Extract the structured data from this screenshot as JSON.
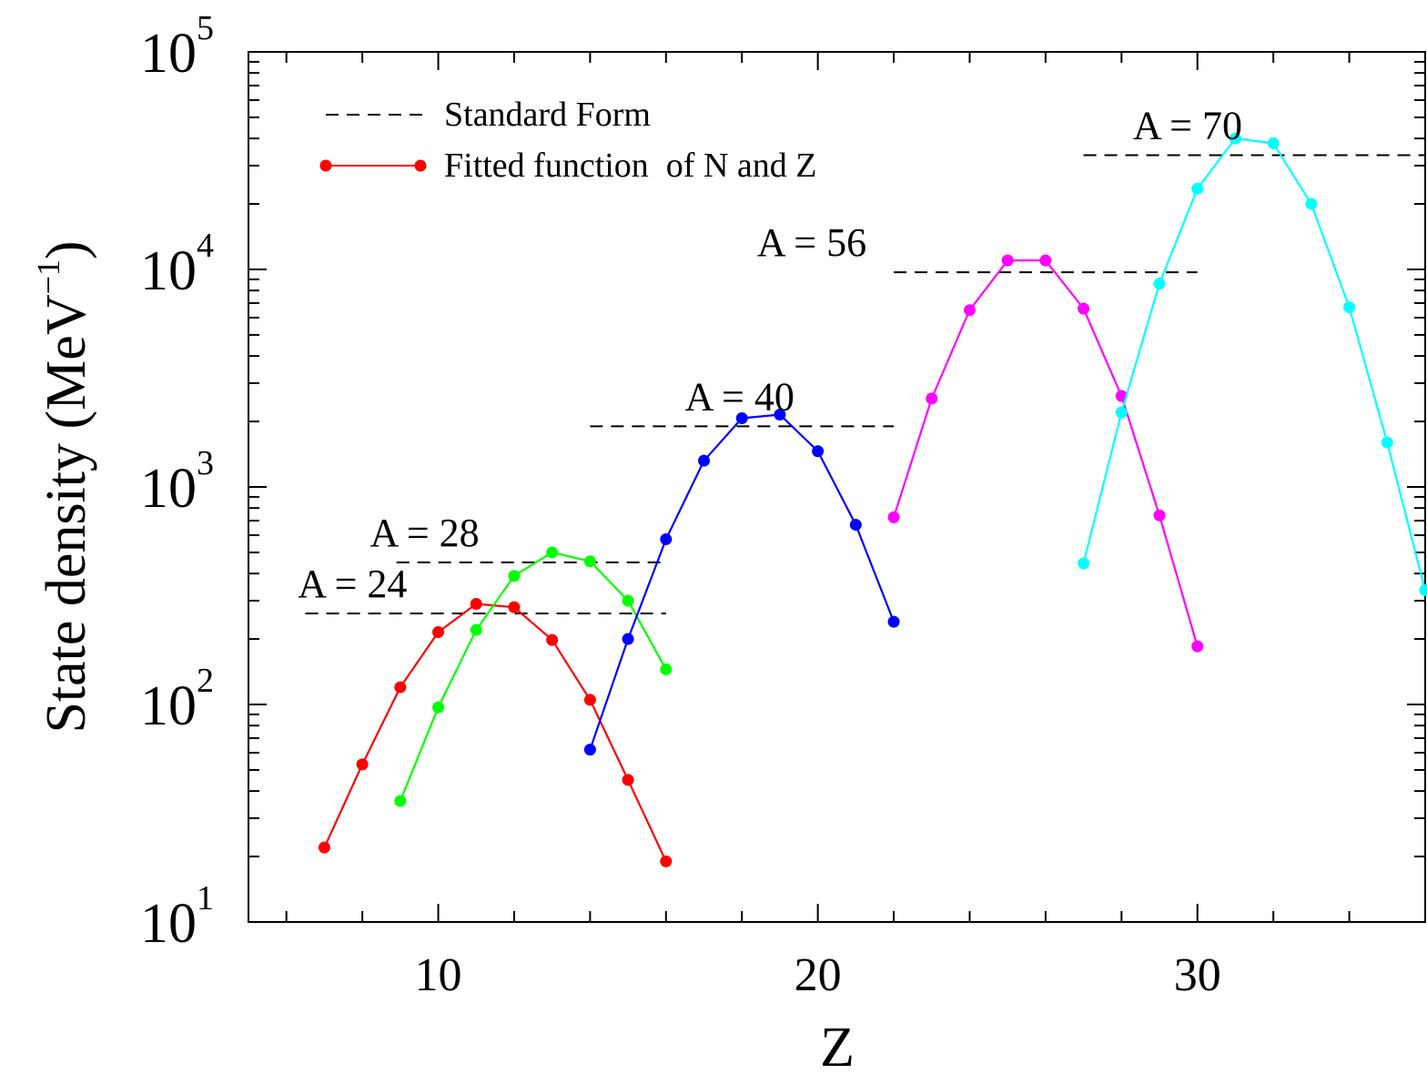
{
  "chart_data": {
    "type": "line",
    "title": "",
    "xlabel": "Z",
    "ylabel": {
      "main": "State density (MeV",
      "sup": "−1",
      "close": ")"
    },
    "x_range": [
      5,
      36
    ],
    "y_scale": "log",
    "y_range": [
      10,
      100000
    ],
    "x_ticks": [
      {
        "value": 10,
        "label": "10"
      },
      {
        "value": 20,
        "label": "20"
      },
      {
        "value": 30,
        "label": "30"
      }
    ],
    "y_ticks": [
      {
        "value": 10,
        "base": "10",
        "exp": "1"
      },
      {
        "value": 100,
        "base": "10",
        "exp": "2"
      },
      {
        "value": 1000,
        "base": "10",
        "exp": "3"
      },
      {
        "value": 10000,
        "base": "10",
        "exp": "4"
      },
      {
        "value": 100000,
        "base": "10",
        "exp": "5"
      }
    ],
    "grid": false,
    "legend": {
      "position": "top-left",
      "entries": [
        {
          "label": "Standard Form",
          "style": "dashed",
          "color": "#000000"
        },
        {
          "label": "Fitted function  of N and Z",
          "style": "line-marker",
          "color": "#ff0000"
        }
      ]
    },
    "series": [
      {
        "annotation": "A = 24",
        "color": "#ff0000",
        "points": [
          [
            7,
            22
          ],
          [
            8,
            53
          ],
          [
            9,
            120
          ],
          [
            10,
            215
          ],
          [
            11,
            290
          ],
          [
            12,
            280
          ],
          [
            13,
            198
          ],
          [
            14,
            105
          ],
          [
            15,
            45
          ],
          [
            16,
            19
          ]
        ],
        "standard": {
          "value": 262,
          "x_from": 7,
          "x_to": 16
        }
      },
      {
        "annotation": "A = 28",
        "color": "#00ff00",
        "points": [
          [
            9,
            36
          ],
          [
            10,
            97
          ],
          [
            11,
            220
          ],
          [
            12,
            390
          ],
          [
            13,
            500
          ],
          [
            14,
            455
          ],
          [
            15,
            300
          ],
          [
            16,
            145
          ]
        ],
        "standard": {
          "value": 450,
          "x_from": 9,
          "x_to": 16
        }
      },
      {
        "annotation": "A = 40",
        "color": "#0000ff",
        "points": [
          [
            14,
            62
          ],
          [
            15,
            200
          ],
          [
            16,
            575
          ],
          [
            17,
            1320
          ],
          [
            18,
            2070
          ],
          [
            19,
            2150
          ],
          [
            20,
            1460
          ],
          [
            21,
            670
          ],
          [
            22,
            240
          ]
        ],
        "standard": {
          "value": 1900,
          "x_from": 14,
          "x_to": 22
        }
      },
      {
        "annotation": "A = 56",
        "color": "#ff00ff",
        "points": [
          [
            22,
            725
          ],
          [
            23,
            2550
          ],
          [
            24,
            6500
          ],
          [
            25,
            11000
          ],
          [
            26,
            11000
          ],
          [
            27,
            6600
          ],
          [
            28,
            2620
          ],
          [
            29,
            740
          ],
          [
            30,
            185
          ]
        ],
        "standard": {
          "value": 9700,
          "x_from": 22,
          "x_to": 30
        }
      },
      {
        "annotation": "A = 70",
        "color": "#00ffff",
        "points": [
          [
            27,
            445
          ],
          [
            28,
            2200
          ],
          [
            29,
            8600
          ],
          [
            30,
            23500
          ],
          [
            31,
            40000
          ],
          [
            32,
            38000
          ],
          [
            33,
            20000
          ],
          [
            34,
            6700
          ],
          [
            35,
            1600
          ],
          [
            36,
            335
          ]
        ],
        "standard": {
          "value": 33500,
          "x_from": 27,
          "x_to": 36
        }
      }
    ]
  }
}
